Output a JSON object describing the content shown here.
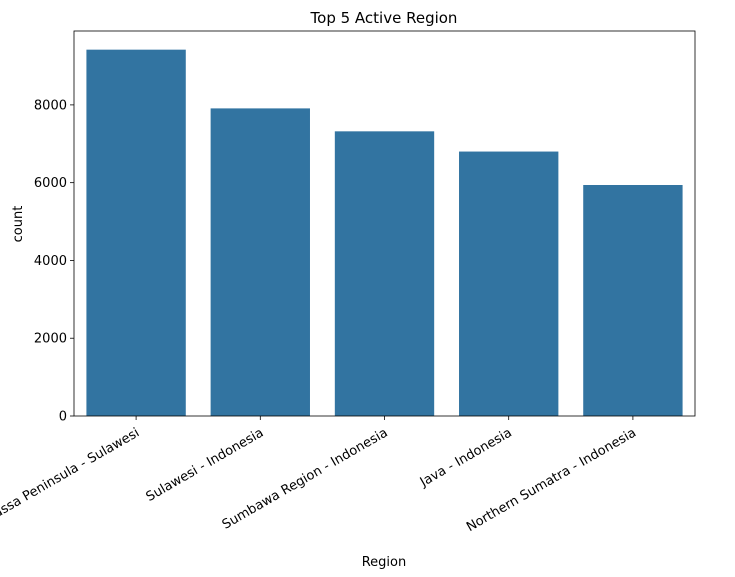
{
  "chart_data": {
    "type": "bar",
    "title": "Top 5 Active Region",
    "xlabel": "Region",
    "ylabel": "count",
    "categories": [
      "Minahassa Peninsula - Sulawesi",
      "Sulawesi - Indonesia",
      "Sumbawa Region - Indonesia",
      "Java - Indonesia",
      "Northern Sumatra - Indonesia"
    ],
    "values": [
      9420,
      7910,
      7320,
      6800,
      5940
    ],
    "ylim": [
      0,
      9900
    ],
    "yticks": [
      0,
      2000,
      4000,
      6000,
      8000
    ],
    "grid": false,
    "bar_color": "#3274a1"
  }
}
